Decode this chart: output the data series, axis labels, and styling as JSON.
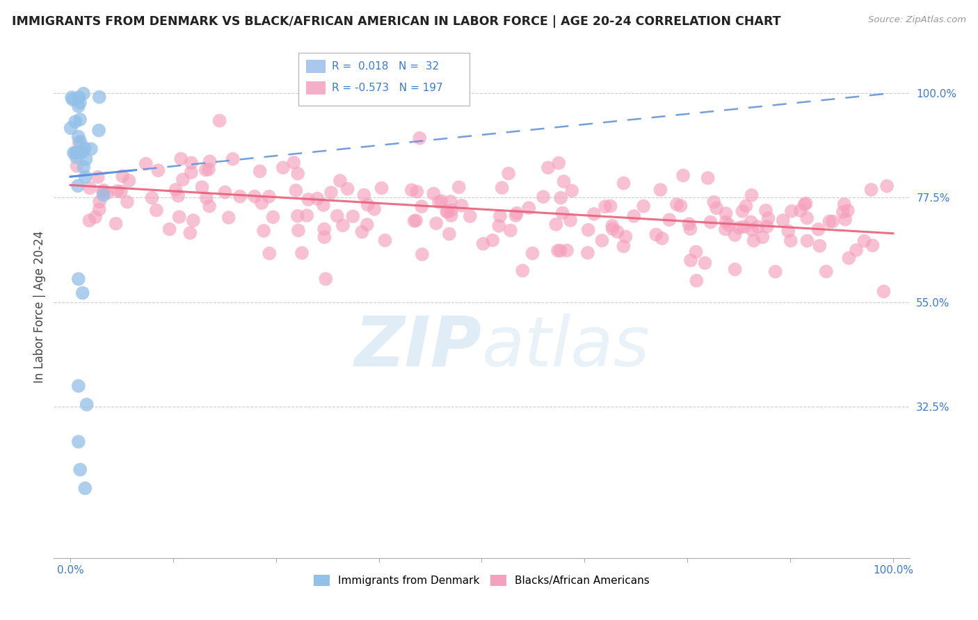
{
  "title": "IMMIGRANTS FROM DENMARK VS BLACK/AFRICAN AMERICAN IN LABOR FORCE | AGE 20-24 CORRELATION CHART",
  "source": "Source: ZipAtlas.com",
  "ylabel": "In Labor Force | Age 20-24",
  "blue_R": 0.018,
  "blue_N": 32,
  "pink_R": -0.573,
  "pink_N": 197,
  "ytick_labels": [
    "100.0%",
    "77.5%",
    "55.0%",
    "32.5%"
  ],
  "ytick_values": [
    1.0,
    0.775,
    0.55,
    0.325
  ],
  "xlim": [
    -0.02,
    1.02
  ],
  "ylim": [
    0.0,
    1.08
  ],
  "blue_color": "#92c0e8",
  "pink_color": "#f5a0bc",
  "blue_line_color": "#5b8dd9",
  "pink_line_color": "#e8607a",
  "grid_color": "#cccccc",
  "watermark_zip": "ZIP",
  "watermark_atlas": "atlas",
  "legend_box_blue": "#aac8ee",
  "legend_box_pink": "#f5aec8",
  "blue_legend_label": "Immigrants from Denmark",
  "pink_legend_label": "Blacks/African Americans",
  "blue_line_x0": 0.0,
  "blue_line_y0": 0.82,
  "blue_line_x1": 1.0,
  "blue_line_y1": 1.0,
  "pink_line_x0": 0.0,
  "pink_line_y0": 0.802,
  "pink_line_x1": 1.0,
  "pink_line_y1": 0.698
}
